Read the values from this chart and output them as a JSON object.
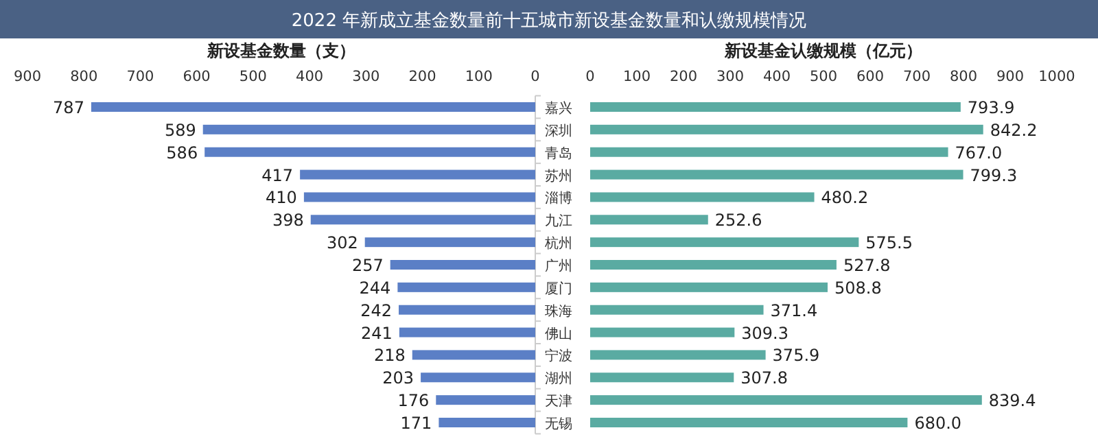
{
  "chart_data": [
    {
      "type": "bar",
      "orientation": "horizontal",
      "title": "2022 年新成立基金数量前十五城市新设基金数量和认缴规模情况",
      "xlabel": "新设基金数量（支）",
      "categories": [
        "嘉兴",
        "深圳",
        "青岛",
        "苏州",
        "淄博",
        "九江",
        "杭州",
        "广州",
        "厦门",
        "珠海",
        "佛山",
        "宁波",
        "湖州",
        "天津",
        "无锡"
      ],
      "values": [
        787,
        589,
        586,
        417,
        410,
        398,
        302,
        257,
        244,
        242,
        241,
        218,
        203,
        176,
        171
      ],
      "color": "#5b7fc6",
      "xlim": [
        900,
        0
      ],
      "xticks": [
        900,
        800,
        700,
        600,
        500,
        400,
        300,
        200,
        100,
        0
      ],
      "data_labels": true
    },
    {
      "type": "bar",
      "orientation": "horizontal",
      "xlabel": "新设基金认缴规模（亿元）",
      "tick_labels": "x",
      "categories": [
        null,
        null,
        null,
        null,
        null,
        null,
        null,
        null,
        null,
        null,
        null,
        null,
        null,
        null,
        null
      ],
      "values": [
        793.9,
        842.2,
        767.0,
        799.3,
        480.2,
        252.6,
        575.5,
        527.8,
        508.8,
        371.4,
        309.3,
        375.9,
        307.8,
        839.4,
        680.0
      ],
      "color": "#5aaba2",
      "value_labels": [
        "793.9",
        "842.2",
        "767.0",
        "799.3",
        "480.2",
        "252.6",
        "575.5",
        "527.8",
        "508.8",
        "371.4",
        "309.3",
        "375.9",
        "307.8",
        "839.4",
        "680.0"
      ],
      "xlim": [
        0,
        1000
      ],
      "xticks": [
        0,
        100,
        200,
        300,
        400,
        500,
        600,
        700,
        800,
        900,
        1000
      ]
    }
  ]
}
